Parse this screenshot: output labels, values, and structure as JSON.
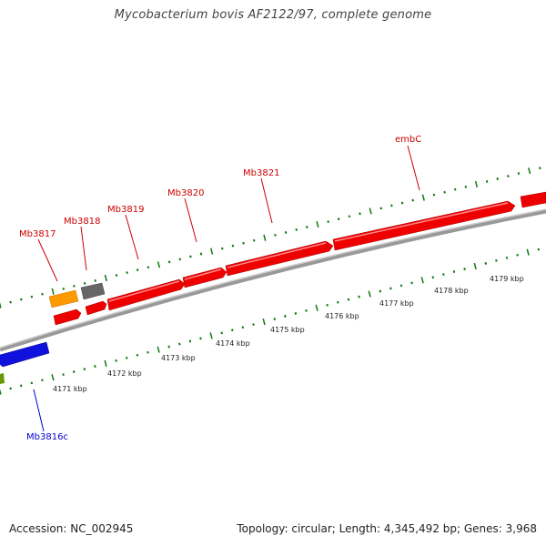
{
  "title": "Mycobacterium bovis AF2122/97, complete genome",
  "footer": {
    "accession": "Accession: NC_002945",
    "stats": "Topology: circular; Length: 4,345,492 bp; Genes: 3,968"
  },
  "colors": {
    "forward_gene": "#ee0000",
    "reverse_gene": "#1111dd",
    "label_forward": "#cc0000",
    "label_reverse": "#0000cc",
    "orange_feature": "#ff9900",
    "gray_feature": "#666666",
    "green_feature": "#669900",
    "tick": "#117711",
    "backbone": "#888888"
  },
  "scale_labels": [
    "4171 kbp",
    "4172 kbp",
    "4173 kbp",
    "4174 kbp",
    "4175 kbp",
    "4176 kbp",
    "4177 kbp",
    "4178 kbp",
    "4179 kbp"
  ],
  "gene_labels": [
    {
      "text": "Mb3817",
      "strand": "forward"
    },
    {
      "text": "Mb3818",
      "strand": "forward"
    },
    {
      "text": "Mb3819",
      "strand": "forward"
    },
    {
      "text": "Mb3820",
      "strand": "forward"
    },
    {
      "text": "Mb3821",
      "strand": "forward"
    },
    {
      "text": "embC",
      "strand": "forward"
    },
    {
      "text": "Mb3816c",
      "strand": "reverse"
    }
  ]
}
